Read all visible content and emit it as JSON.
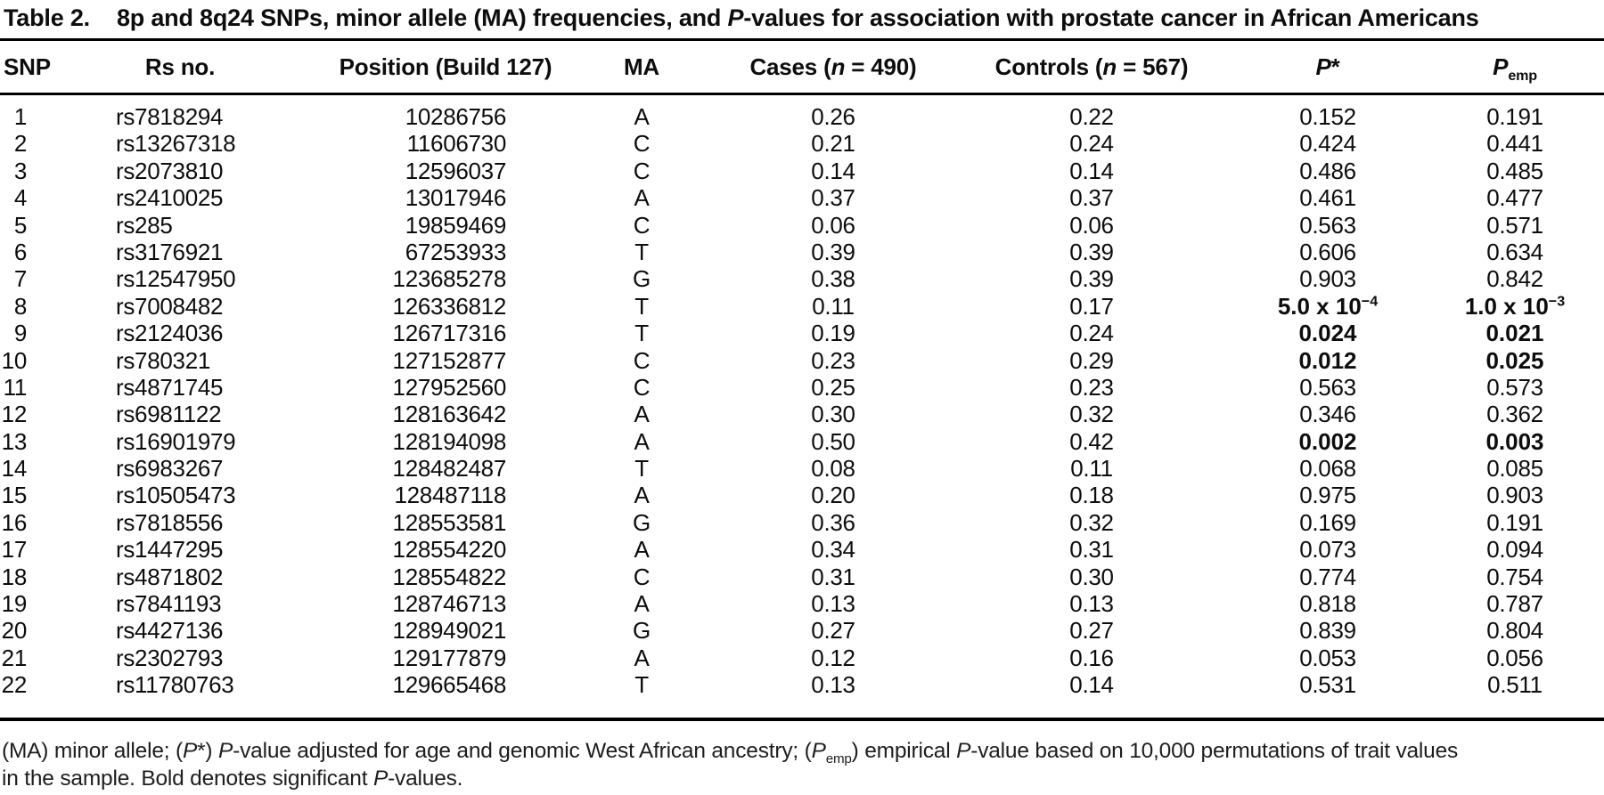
{
  "colors": {
    "text": "#0d0d0d",
    "rule": "#000000",
    "background": "#ffffff"
  },
  "title": {
    "label": "Table 2.",
    "segments": [
      {
        "t": "8p and 8q24 SNPs, minor allele (MA) frequencies, and "
      },
      {
        "t": "P",
        "i": true
      },
      {
        "t": "-values for association with prostate cancer in African Americans"
      }
    ]
  },
  "table": {
    "headers": {
      "snp": [
        {
          "t": "SNP"
        }
      ],
      "rs": [
        {
          "t": "Rs no."
        }
      ],
      "pos": [
        {
          "t": "Position (Build 127)"
        }
      ],
      "ma": [
        {
          "t": "MA"
        }
      ],
      "cases": [
        {
          "t": "Cases ("
        },
        {
          "t": "n",
          "i": true
        },
        {
          "t": " = 490)"
        }
      ],
      "controls": [
        {
          "t": "Controls ("
        },
        {
          "t": "n",
          "i": true
        },
        {
          "t": " = 567)"
        }
      ],
      "p": [
        {
          "t": "P",
          "i": true
        },
        {
          "t": "*"
        }
      ],
      "pemp": [
        {
          "t": "P",
          "i": true
        },
        {
          "t": "emp",
          "sub": true
        }
      ]
    },
    "rows": [
      {
        "snp": "1",
        "rs": "rs7818294",
        "pos": "10286756",
        "ma": "A",
        "cases": "0.26",
        "controls": "0.22",
        "p": "0.152",
        "pemp": "0.191",
        "bold": false
      },
      {
        "snp": "2",
        "rs": "rs13267318",
        "pos": "11606730",
        "ma": "C",
        "cases": "0.21",
        "controls": "0.24",
        "p": "0.424",
        "pemp": "0.441",
        "bold": false
      },
      {
        "snp": "3",
        "rs": "rs2073810",
        "pos": "12596037",
        "ma": "C",
        "cases": "0.14",
        "controls": "0.14",
        "p": "0.486",
        "pemp": "0.485",
        "bold": false
      },
      {
        "snp": "4",
        "rs": "rs2410025",
        "pos": "13017946",
        "ma": "A",
        "cases": "0.37",
        "controls": "0.37",
        "p": "0.461",
        "pemp": "0.477",
        "bold": false
      },
      {
        "snp": "5",
        "rs": "rs285",
        "pos": "19859469",
        "ma": "C",
        "cases": "0.06",
        "controls": "0.06",
        "p": "0.563",
        "pemp": "0.571",
        "bold": false
      },
      {
        "snp": "6",
        "rs": "rs3176921",
        "pos": "67253933",
        "ma": "T",
        "cases": "0.39",
        "controls": "0.39",
        "p": "0.606",
        "pemp": "0.634",
        "bold": false
      },
      {
        "snp": "7",
        "rs": "rs12547950",
        "pos": "123685278",
        "ma": "G",
        "cases": "0.38",
        "controls": "0.39",
        "p": "0.903",
        "pemp": "0.842",
        "bold": false
      },
      {
        "snp": "8",
        "rs": "rs7008482",
        "pos": "126336812",
        "ma": "T",
        "cases": "0.11",
        "controls": "0.17",
        "p": {
          "t": "5.0 x 10",
          "sup": "−4"
        },
        "pemp": {
          "t": "1.0 x 10",
          "sup": "−3"
        },
        "bold": true
      },
      {
        "snp": "9",
        "rs": "rs2124036",
        "pos": "126717316",
        "ma": "T",
        "cases": "0.19",
        "controls": "0.24",
        "p": "0.024",
        "pemp": "0.021",
        "bold": true
      },
      {
        "snp": "10",
        "rs": "rs780321",
        "pos": "127152877",
        "ma": "C",
        "cases": "0.23",
        "controls": "0.29",
        "p": "0.012",
        "pemp": "0.025",
        "bold": true
      },
      {
        "snp": "11",
        "rs": "rs4871745",
        "pos": "127952560",
        "ma": "C",
        "cases": "0.25",
        "controls": "0.23",
        "p": "0.563",
        "pemp": "0.573",
        "bold": false
      },
      {
        "snp": "12",
        "rs": "rs6981122",
        "pos": "128163642",
        "ma": "A",
        "cases": "0.30",
        "controls": "0.32",
        "p": "0.346",
        "pemp": "0.362",
        "bold": false
      },
      {
        "snp": "13",
        "rs": "rs16901979",
        "pos": "128194098",
        "ma": "A",
        "cases": "0.50",
        "controls": "0.42",
        "p": "0.002",
        "pemp": "0.003",
        "bold": true
      },
      {
        "snp": "14",
        "rs": "rs6983267",
        "pos": "128482487",
        "ma": "T",
        "cases": "0.08",
        "controls": "0.11",
        "p": "0.068",
        "pemp": "0.085",
        "bold": false
      },
      {
        "snp": "15",
        "rs": "rs10505473",
        "pos": "128487118",
        "ma": "A",
        "cases": "0.20",
        "controls": "0.18",
        "p": "0.975",
        "pemp": "0.903",
        "bold": false
      },
      {
        "snp": "16",
        "rs": "rs7818556",
        "pos": "128553581",
        "ma": "G",
        "cases": "0.36",
        "controls": "0.32",
        "p": "0.169",
        "pemp": "0.191",
        "bold": false
      },
      {
        "snp": "17",
        "rs": "rs1447295",
        "pos": "128554220",
        "ma": "A",
        "cases": "0.34",
        "controls": "0.31",
        "p": "0.073",
        "pemp": "0.094",
        "bold": false
      },
      {
        "snp": "18",
        "rs": "rs4871802",
        "pos": "128554822",
        "ma": "C",
        "cases": "0.31",
        "controls": "0.30",
        "p": "0.774",
        "pemp": "0.754",
        "bold": false
      },
      {
        "snp": "19",
        "rs": "rs7841193",
        "pos": "128746713",
        "ma": "A",
        "cases": "0.13",
        "controls": "0.13",
        "p": "0.818",
        "pemp": "0.787",
        "bold": false
      },
      {
        "snp": "20",
        "rs": "rs4427136",
        "pos": "128949021",
        "ma": "G",
        "cases": "0.27",
        "controls": "0.27",
        "p": "0.839",
        "pemp": "0.804",
        "bold": false
      },
      {
        "snp": "21",
        "rs": "rs2302793",
        "pos": "129177879",
        "ma": "A",
        "cases": "0.12",
        "controls": "0.16",
        "p": "0.053",
        "pemp": "0.056",
        "bold": false
      },
      {
        "snp": "22",
        "rs": "rs11780763",
        "pos": "129665468",
        "ma": "T",
        "cases": "0.13",
        "controls": "0.14",
        "p": "0.531",
        "pemp": "0.511",
        "bold": false
      }
    ]
  },
  "footnote": {
    "segments": [
      {
        "t": "(MA) minor allele; ("
      },
      {
        "t": "P",
        "i": true
      },
      {
        "t": "*) "
      },
      {
        "t": "P",
        "i": true
      },
      {
        "t": "-value adjusted for age and genomic West African ancestry; ("
      },
      {
        "t": "P",
        "i": true
      },
      {
        "t": "emp",
        "sub": true
      },
      {
        "t": ") empirical "
      },
      {
        "t": "P",
        "i": true
      },
      {
        "t": "-value based on 10,000 permutations of trait values"
      },
      {
        "br": true
      },
      {
        "t": "in the sample. Bold denotes significant "
      },
      {
        "t": "P",
        "i": true
      },
      {
        "t": "-values."
      }
    ]
  }
}
